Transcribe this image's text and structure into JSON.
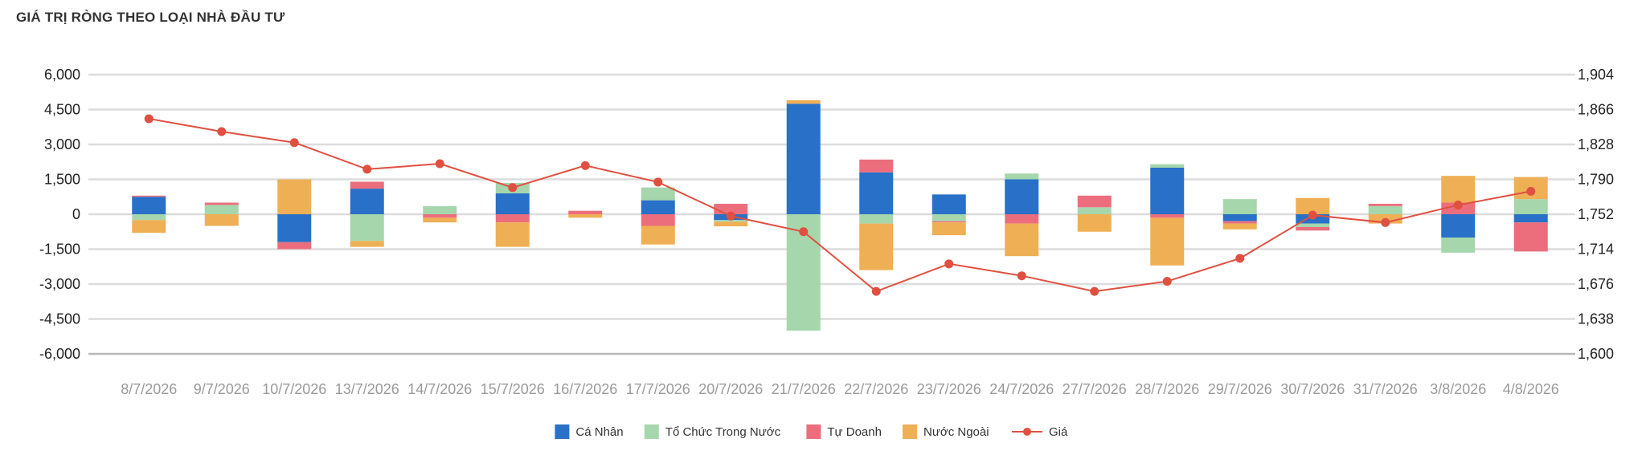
{
  "chart_title": "GIÁ TRỊ RÒNG THEO LOẠI NHÀ ĐẦU TƯ",
  "chart_data": {
    "type": "bar",
    "stacked": true,
    "title": "GIÁ TRỊ RÒNG THEO LOẠI NHÀ ĐẦU TƯ",
    "categories": [
      "8/7/2026",
      "9/7/2026",
      "10/7/2026",
      "13/7/2026",
      "14/7/2026",
      "15/7/2026",
      "16/7/2026",
      "17/7/2026",
      "20/7/2026",
      "21/7/2026",
      "22/7/2026",
      "23/7/2026",
      "24/7/2026",
      "27/7/2026",
      "28/7/2026",
      "29/7/2026",
      "30/7/2026",
      "31/7/2026",
      "3/8/2026",
      "4/8/2026"
    ],
    "y_left": {
      "ticks": [
        "6,000",
        "4,500",
        "3,000",
        "1,500",
        "0",
        "-1,500",
        "-3,000",
        "-4,500",
        "-6,000"
      ],
      "ylim": [
        -6000,
        6000
      ]
    },
    "y_right": {
      "ticks": [
        "1,904",
        "1,866",
        "1,828",
        "1,790",
        "1,752",
        "1,714",
        "1,676",
        "1,638",
        "1,600"
      ],
      "ylim": [
        1600,
        1904
      ]
    },
    "grid": true,
    "legend_position": "bottom",
    "series": [
      {
        "name": "Cá Nhân",
        "color": "#2870c8",
        "values": [
          750,
          0,
          -1200,
          1100,
          0,
          900,
          0,
          600,
          -250,
          4750,
          1800,
          850,
          1500,
          0,
          2000,
          -300,
          -400,
          0,
          -1000,
          -350
        ]
      },
      {
        "name": "Tổ Chức Trong Nước",
        "color": "#a5d6ac",
        "values": [
          -250,
          400,
          0,
          -1150,
          350,
          450,
          0,
          550,
          -70,
          -5000,
          -400,
          -300,
          250,
          300,
          150,
          650,
          -150,
          350,
          -650,
          650
        ]
      },
      {
        "name": "Tự Doanh",
        "color": "#ec6e7d",
        "values": [
          50,
          100,
          -300,
          300,
          -150,
          -350,
          150,
          -500,
          450,
          0,
          550,
          -50,
          -400,
          500,
          -150,
          -100,
          -150,
          100,
          500,
          -1250
        ]
      },
      {
        "name": "Nước Ngoài",
        "color": "#efaf55",
        "values": [
          -550,
          -500,
          1500,
          -250,
          -200,
          -1050,
          -150,
          -800,
          -200,
          150,
          -2000,
          -550,
          -1400,
          -750,
          -2050,
          -250,
          700,
          -400,
          1150,
          950
        ]
      },
      {
        "name": "Giá",
        "type": "line",
        "color": "#e05040",
        "axis": "right",
        "values": [
          1856,
          1842,
          1830,
          1801,
          1807,
          1781,
          1805,
          1787,
          1750,
          1733,
          1668,
          1698,
          1685,
          1668,
          1679,
          1704,
          1751,
          1743,
          1762,
          1777
        ]
      }
    ]
  }
}
